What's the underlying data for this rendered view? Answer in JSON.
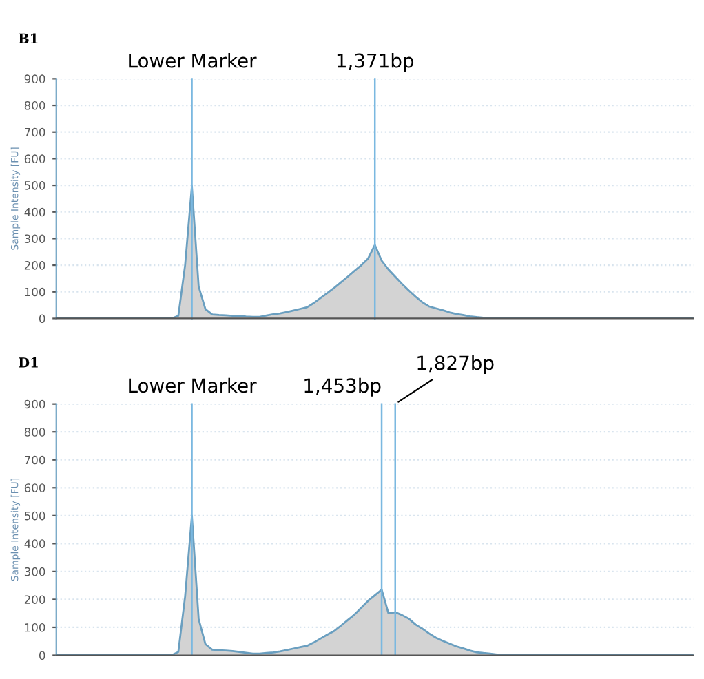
{
  "chart_data": [
    {
      "type": "area",
      "title": "B1",
      "ylabel": "Sample Intensity [FU]",
      "ylim": [
        0,
        900
      ],
      "yticks": [
        0,
        100,
        200,
        300,
        400,
        500,
        600,
        700,
        800,
        900
      ],
      "tick_labels": "y",
      "grid": true,
      "categories": [
        null,
        null,
        null,
        null,
        null,
        null,
        null,
        null,
        null,
        null,
        null,
        null,
        null,
        null,
        null,
        null,
        null,
        null,
        null,
        null,
        null,
        null,
        null,
        null,
        null,
        null,
        null,
        null,
        null,
        null,
        null,
        null,
        null,
        null,
        null,
        null,
        null,
        null,
        null,
        null,
        null,
        null,
        null,
        null,
        null,
        null,
        null,
        null,
        null,
        null,
        null,
        null,
        null,
        null,
        null,
        null,
        null,
        null,
        null,
        null,
        null,
        null,
        null,
        null,
        null,
        null,
        null,
        null,
        null,
        null,
        null,
        null,
        null,
        null,
        null,
        null,
        null,
        null,
        null,
        null,
        null,
        null,
        null,
        null,
        null,
        null,
        null,
        null,
        null,
        null,
        null,
        null,
        null,
        null,
        null
      ],
      "series": [
        {
          "color": "#6a9fc0",
          "values": [
            0,
            0,
            0,
            0,
            0,
            0,
            0,
            0,
            0,
            0,
            0,
            0,
            0,
            0,
            0,
            0,
            0,
            0,
            10,
            200,
            497,
            120,
            35,
            15,
            13,
            12,
            10,
            9,
            7,
            6,
            6,
            11,
            16,
            19,
            24,
            30,
            36,
            42,
            58,
            77,
            96,
            115,
            136,
            157,
            179,
            200,
            225,
            276,
            217,
            184,
            157,
            130,
            105,
            82,
            61,
            45,
            38,
            31,
            23,
            17,
            13,
            8,
            5,
            3,
            2,
            0,
            0,
            0,
            0,
            0,
            0,
            0,
            0,
            0,
            0,
            0,
            0,
            0,
            0,
            0,
            0,
            0,
            0,
            0,
            0,
            0,
            0,
            0,
            0,
            0,
            0,
            0,
            0,
            0,
            0
          ]
        }
      ],
      "annotations": [
        "Lower Marker",
        "1,371bp"
      ]
    },
    {
      "type": "area",
      "title": "D1",
      "ylabel": "Sample Intensity [FU]",
      "ylim": [
        0,
        900
      ],
      "yticks": [
        0,
        100,
        200,
        300,
        400,
        500,
        600,
        700,
        800,
        900
      ],
      "tick_labels": "y",
      "grid": true,
      "categories": [
        null,
        null,
        null,
        null,
        null,
        null,
        null,
        null,
        null,
        null,
        null,
        null,
        null,
        null,
        null,
        null,
        null,
        null,
        null,
        null,
        null,
        null,
        null,
        null,
        null,
        null,
        null,
        null,
        null,
        null,
        null,
        null,
        null,
        null,
        null,
        null,
        null,
        null,
        null,
        null,
        null,
        null,
        null,
        null,
        null,
        null,
        null,
        null,
        null,
        null,
        null,
        null,
        null,
        null,
        null,
        null,
        null,
        null,
        null,
        null,
        null,
        null,
        null,
        null,
        null,
        null,
        null,
        null,
        null,
        null,
        null,
        null,
        null,
        null,
        null,
        null,
        null,
        null,
        null,
        null,
        null,
        null,
        null,
        null,
        null,
        null,
        null,
        null,
        null,
        null,
        null,
        null,
        null,
        null,
        null
      ],
      "series": [
        {
          "color": "#6a9fc0",
          "values": [
            0,
            0,
            0,
            0,
            0,
            0,
            0,
            0,
            0,
            0,
            0,
            0,
            0,
            0,
            0,
            0,
            0,
            0,
            12,
            210,
            500,
            130,
            40,
            20,
            18,
            17,
            15,
            12,
            9,
            6,
            6,
            8,
            10,
            14,
            19,
            24,
            29,
            34,
            46,
            60,
            74,
            87,
            106,
            126,
            146,
            170,
            195,
            215,
            235,
            150,
            154,
            144,
            131,
            110,
            95,
            78,
            63,
            52,
            42,
            32,
            25,
            17,
            11,
            8,
            6,
            3,
            2,
            1,
            0,
            0,
            0,
            0,
            0,
            0,
            0,
            0,
            0,
            0,
            0,
            0,
            0,
            0,
            0,
            0,
            0,
            0,
            0,
            0,
            0,
            0,
            0,
            0,
            0,
            0,
            0
          ]
        }
      ],
      "annotations": [
        "Lower Marker",
        "1,453bp",
        "1,827bp"
      ]
    }
  ]
}
